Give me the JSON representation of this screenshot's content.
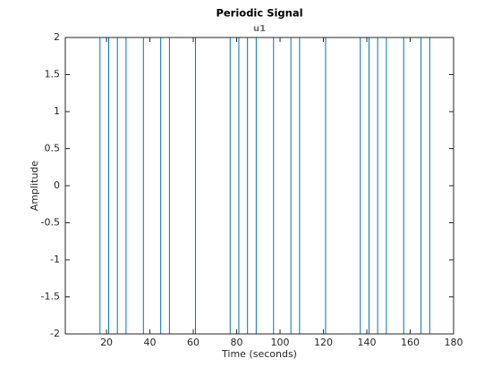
{
  "chart_data": {
    "type": "stairs",
    "title": "Periodic Signal",
    "subtitle": "u1",
    "x_label": "Time (seconds)",
    "y_label": "Amplitude",
    "series": [
      {
        "name": "u1",
        "color": "#0072bd",
        "x": [
          1,
          17,
          21,
          25,
          29,
          37,
          45,
          49,
          61,
          77,
          81,
          85,
          89,
          97,
          105,
          109,
          121,
          137,
          141,
          145,
          149,
          157,
          165,
          169
        ],
        "values": [
          2,
          -2,
          2,
          -2,
          2,
          -2,
          2,
          -2,
          2,
          -2,
          2,
          -2,
          2,
          -2,
          2,
          -2,
          2,
          -2,
          2,
          -2,
          2,
          -2,
          2,
          -2
        ]
      }
    ],
    "xlim": [
      1,
      180
    ],
    "xticks": [
      20,
      40,
      60,
      80,
      100,
      120,
      140,
      160,
      180
    ],
    "ylim": [
      -2,
      2
    ],
    "yticks": [
      -2,
      -1.5,
      -1,
      -0.5,
      0,
      0.5,
      1,
      1.5,
      2
    ],
    "grid": false
  }
}
